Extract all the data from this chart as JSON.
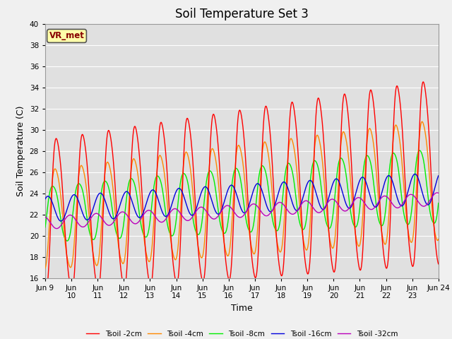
{
  "title": "Soil Temperature Set 3",
  "xlabel": "Time",
  "ylabel": "Soil Temperature (C)",
  "ylim": [
    16,
    40
  ],
  "xlim": [
    0,
    15
  ],
  "annotation": "VR_met",
  "fig_bg_color": "#f0f0f0",
  "plot_bg_color": "#e0e0e0",
  "legend_entries": [
    "Tsoil -2cm",
    "Tsoil -4cm",
    "Tsoil -8cm",
    "Tsoil -16cm",
    "Tsoil -32cm"
  ],
  "line_colors": [
    "#ff0000",
    "#ff8800",
    "#00ee00",
    "#0000dd",
    "#bb00bb"
  ],
  "xtick_labels": [
    "Jun 9",
    "Jun\n10",
    "Jun\n11",
    "Jun\n12",
    "Jun\n13",
    "Jun\n14",
    "Jun\n15",
    "Jun\n16",
    "Jun\n17",
    "Jun\n18",
    "Jun\n19",
    "Jun\n20",
    "Jun\n21",
    "Jun\n22",
    "Jun\n23",
    "Jun 24"
  ],
  "grid_color": "#ffffff",
  "title_fontsize": 12,
  "axis_fontsize": 9,
  "tick_fontsize": 7.5
}
